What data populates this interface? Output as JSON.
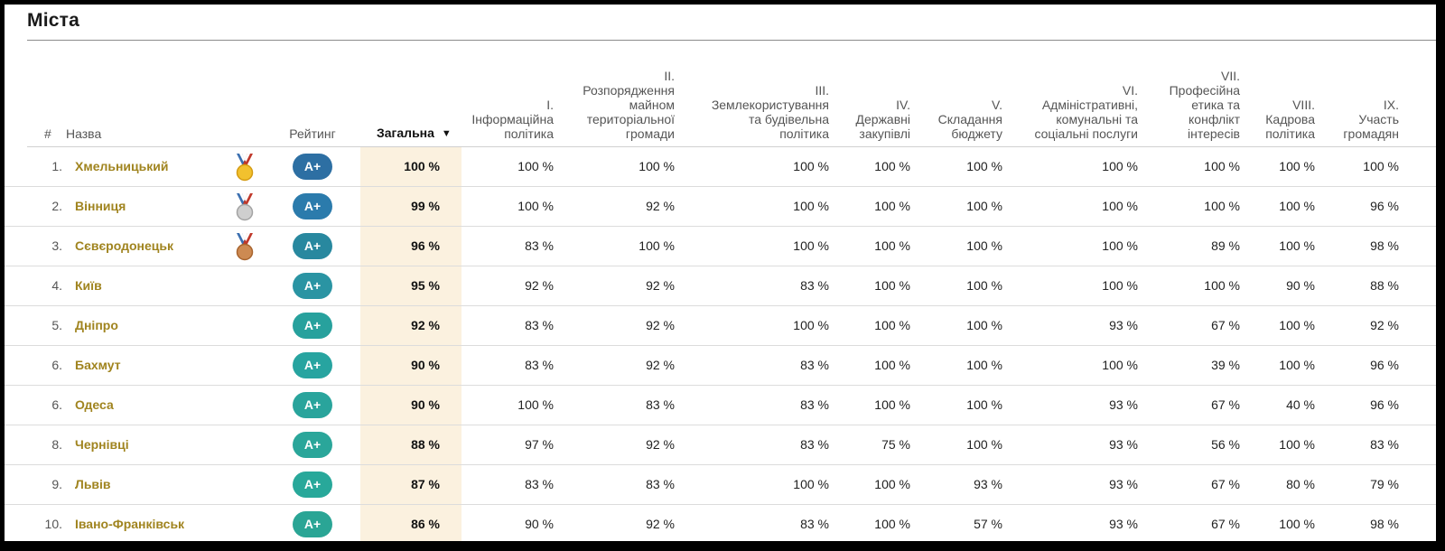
{
  "section_title": "Міста",
  "colors": {
    "name_link": "#a0841f",
    "total_highlight": "#fbf1df",
    "badge_colors": [
      "#2d6fa3",
      "#2b7bac",
      "#28889f",
      "#2a94a3",
      "#27a19d",
      "#27a4a0",
      "#29a49c",
      "#2aa69a",
      "#28a89a",
      "#2aa595"
    ]
  },
  "columns": {
    "num": "#",
    "name": "Назва",
    "rating": "Рейтинг",
    "total": "Загальна",
    "s1": [
      "I.",
      "Інформаційна",
      "політика"
    ],
    "s2": [
      "II.",
      "Розпорядження",
      "майном",
      "територіальної",
      "громади"
    ],
    "s3": [
      "III.",
      "Землекористування",
      "та будівельна",
      "політика"
    ],
    "s4": [
      "IV.",
      "Державні",
      "закупівлі"
    ],
    "s5": [
      "V.",
      "Складання",
      "бюджету"
    ],
    "s6": [
      "VI.",
      "Адміністративні,",
      "комунальні та",
      "соціальні послуги"
    ],
    "s7": [
      "VII.",
      "Професійна",
      "етика та",
      "конфлікт",
      "інтересів"
    ],
    "s8": [
      "VIII.",
      "Кадрова",
      "політика"
    ],
    "s9": [
      "IX.",
      "Участь",
      "громадян"
    ]
  },
  "sort_indicator": "▼",
  "rows": [
    {
      "num": "1.",
      "name": "Хмельницький",
      "medal": "gold-medal-icon",
      "rating": "A+",
      "total": "100 %",
      "s": [
        "100 %",
        "100 %",
        "100 %",
        "100 %",
        "100 %",
        "100 %",
        "100 %",
        "100 %",
        "100 %"
      ]
    },
    {
      "num": "2.",
      "name": "Вінниця",
      "medal": "silver-medal-icon",
      "rating": "A+",
      "total": "99 %",
      "s": [
        "100 %",
        "92 %",
        "100 %",
        "100 %",
        "100 %",
        "100 %",
        "100 %",
        "100 %",
        "96 %"
      ]
    },
    {
      "num": "3.",
      "name": "Сєвєродонецьк",
      "medal": "bronze-medal-icon",
      "rating": "A+",
      "total": "96 %",
      "s": [
        "83 %",
        "100 %",
        "100 %",
        "100 %",
        "100 %",
        "100 %",
        "89 %",
        "100 %",
        "98 %"
      ]
    },
    {
      "num": "4.",
      "name": "Київ",
      "medal": "",
      "rating": "A+",
      "total": "95 %",
      "s": [
        "92 %",
        "92 %",
        "83 %",
        "100 %",
        "100 %",
        "100 %",
        "100 %",
        "90 %",
        "88 %"
      ]
    },
    {
      "num": "5.",
      "name": "Дніпро",
      "medal": "",
      "rating": "A+",
      "total": "92 %",
      "s": [
        "83 %",
        "92 %",
        "100 %",
        "100 %",
        "100 %",
        "93 %",
        "67 %",
        "100 %",
        "92 %"
      ]
    },
    {
      "num": "6.",
      "name": "Бахмут",
      "medal": "",
      "rating": "A+",
      "total": "90 %",
      "s": [
        "83 %",
        "92 %",
        "83 %",
        "100 %",
        "100 %",
        "100 %",
        "39 %",
        "100 %",
        "96 %"
      ]
    },
    {
      "num": "6.",
      "name": "Одеса",
      "medal": "",
      "rating": "A+",
      "total": "90 %",
      "s": [
        "100 %",
        "83 %",
        "83 %",
        "100 %",
        "100 %",
        "93 %",
        "67 %",
        "40 %",
        "96 %"
      ]
    },
    {
      "num": "8.",
      "name": "Чернівці",
      "medal": "",
      "rating": "A+",
      "total": "88 %",
      "s": [
        "97 %",
        "92 %",
        "83 %",
        "75 %",
        "100 %",
        "93 %",
        "56 %",
        "100 %",
        "83 %"
      ]
    },
    {
      "num": "9.",
      "name": "Львів",
      "medal": "",
      "rating": "A+",
      "total": "87 %",
      "s": [
        "83 %",
        "83 %",
        "100 %",
        "100 %",
        "93 %",
        "93 %",
        "67 %",
        "80 %",
        "79 %"
      ]
    },
    {
      "num": "10.",
      "name": "Івано-Франківськ",
      "medal": "",
      "rating": "A+",
      "total": "86 %",
      "s": [
        "90 %",
        "92 %",
        "83 %",
        "100 %",
        "57 %",
        "93 %",
        "67 %",
        "100 %",
        "98 %"
      ]
    }
  ]
}
